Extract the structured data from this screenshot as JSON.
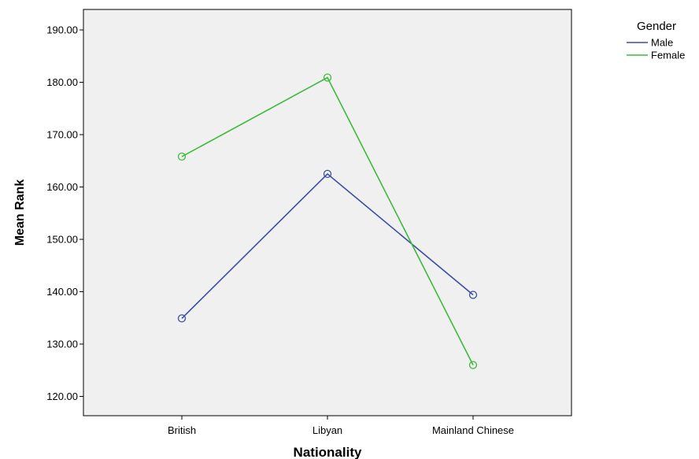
{
  "chart_data": {
    "type": "line",
    "categories": [
      "British",
      "Libyan",
      "Mainland Chinese"
    ],
    "xlabel": "Nationality",
    "ylabel": "Mean Rank",
    "ylim": [
      115,
      195
    ],
    "yticks": [
      "120.00",
      "130.00",
      "140.00",
      "150.00",
      "160.00",
      "170.00",
      "180.00",
      "190.00"
    ],
    "grid": false,
    "legend": {
      "title": "Gender",
      "placement": "top-right outside"
    },
    "series": [
      {
        "name": "Male",
        "color": "#3a4fa3",
        "values": [
          134.9,
          162.5,
          139.4
        ]
      },
      {
        "name": "Female",
        "color": "#3dba3d",
        "values": [
          165.8,
          180.9,
          126.0
        ]
      }
    ]
  }
}
